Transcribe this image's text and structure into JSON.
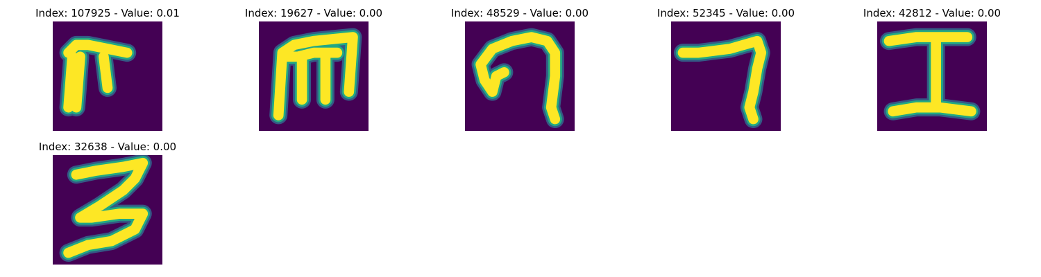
{
  "chart_data": [
    {
      "type": "heatmap",
      "title": "Index: 107925 - Value: 0.01",
      "glyph": "ш-like"
    },
    {
      "type": "heatmap",
      "title": "Index: 19627 - Value: 0.00",
      "glyph": "m-like"
    },
    {
      "type": "heatmap",
      "title": "Index: 48529 - Value: 0.00",
      "glyph": "arch"
    },
    {
      "type": "heatmap",
      "title": "Index: 52345 - Value: 0.00",
      "glyph": "7-like"
    },
    {
      "type": "heatmap",
      "title": "Index: 42812 - Value: 0.00",
      "glyph": "I-like"
    },
    {
      "type": "heatmap",
      "title": "Index: 32638 - Value: 0.00",
      "glyph": "3-like"
    }
  ],
  "colors": {
    "background": "#440154",
    "stroke_core": "#fde725",
    "stroke_edge": "#22a884",
    "stroke_fade": "#31688e"
  }
}
